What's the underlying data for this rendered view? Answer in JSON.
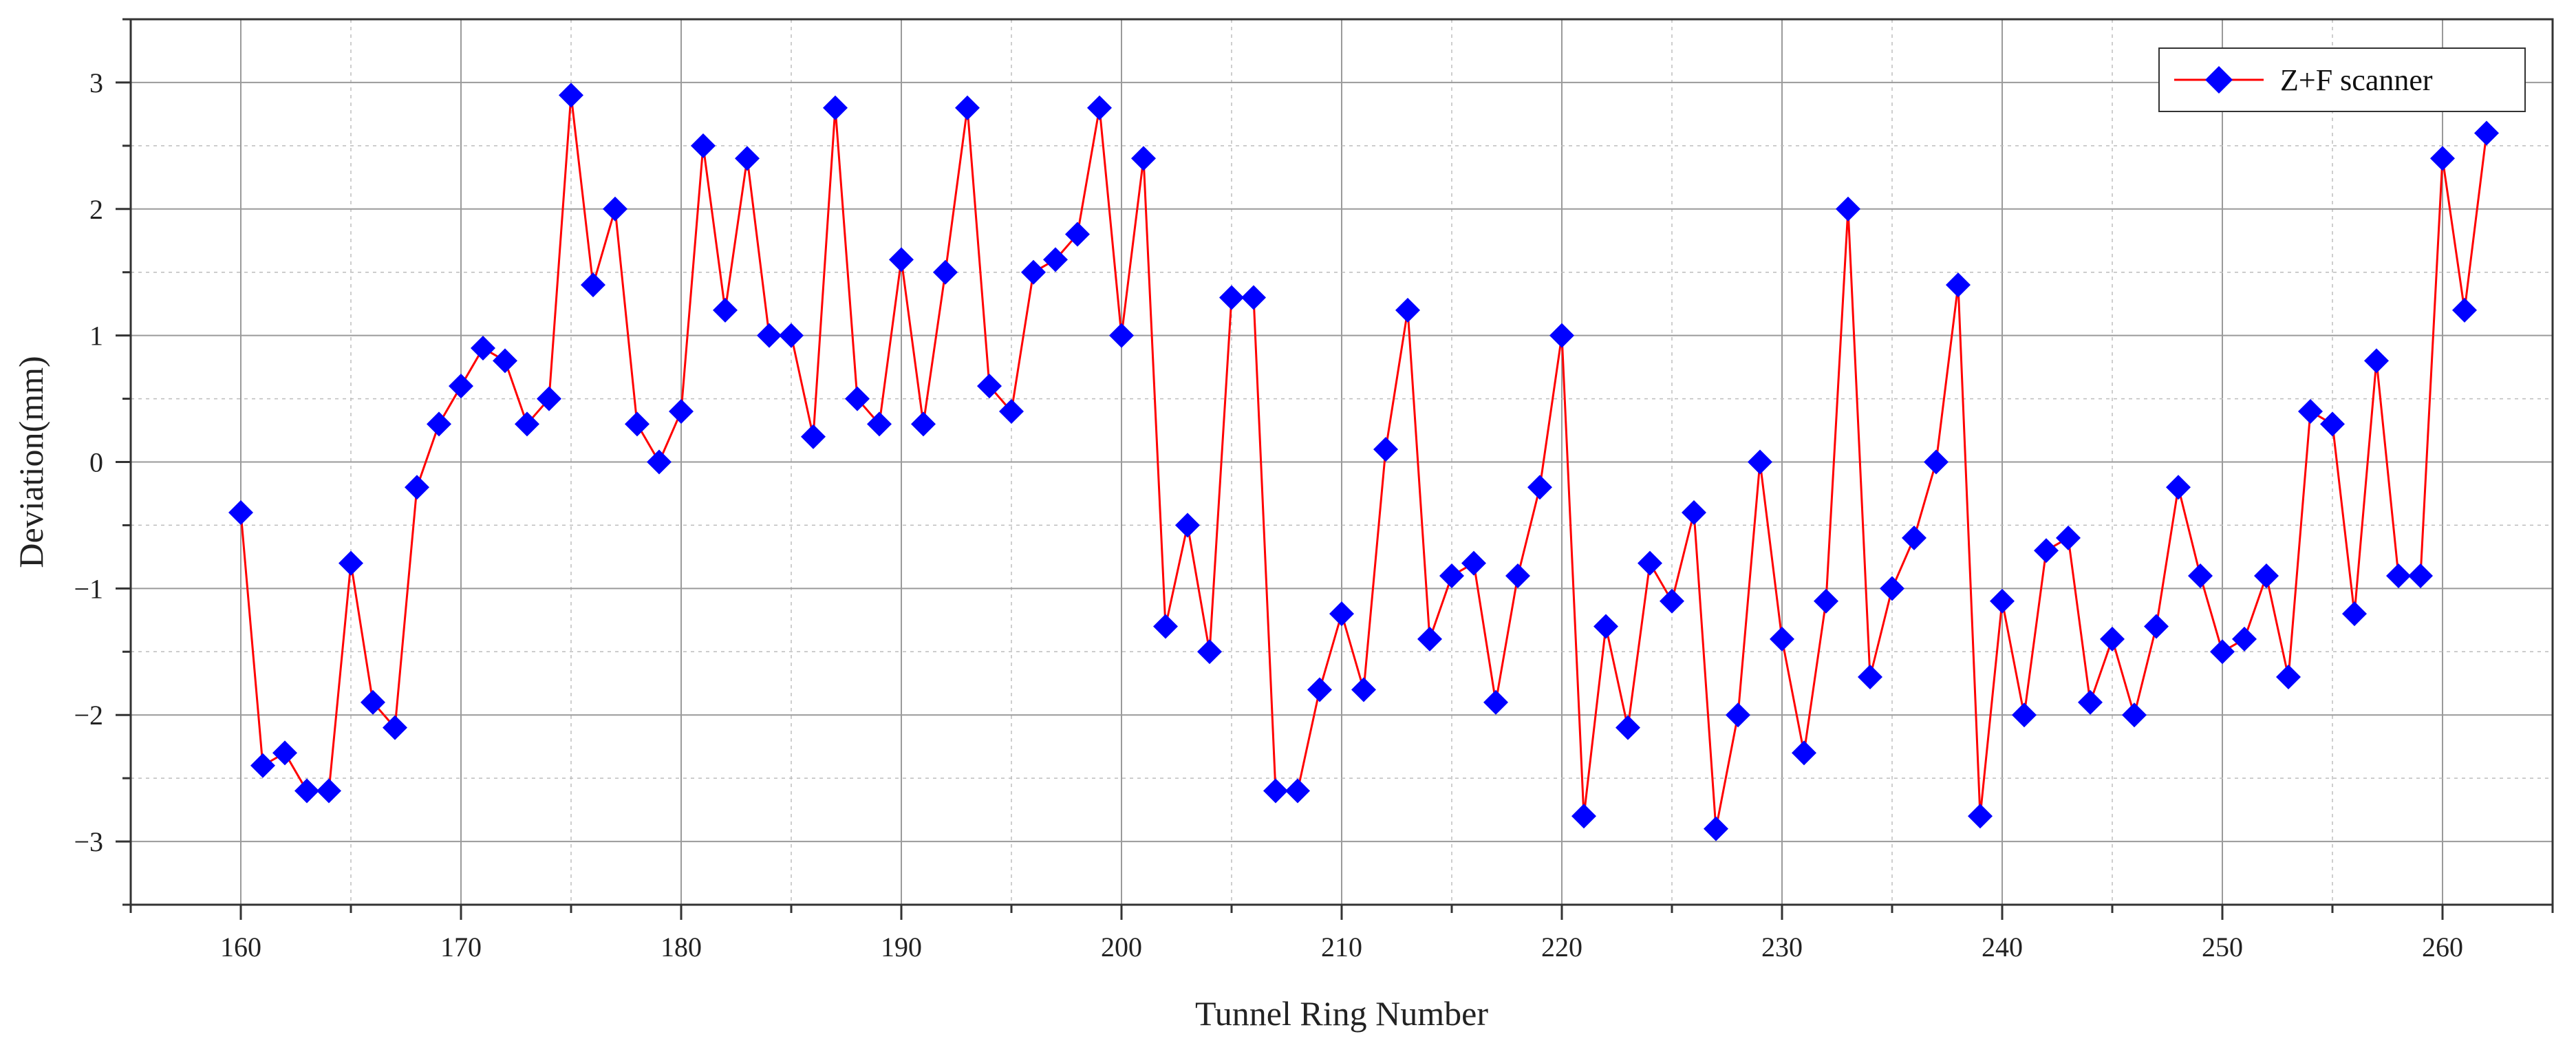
{
  "chart_data": {
    "type": "line",
    "title": "",
    "xlabel": "Tunnel Ring Number",
    "ylabel": "Deviation(mm)",
    "xlim": [
      155,
      265
    ],
    "ylim": [
      -3.5,
      3.5
    ],
    "x_ticks": [
      160,
      170,
      180,
      190,
      200,
      210,
      220,
      230,
      240,
      250,
      260
    ],
    "y_ticks": [
      -3,
      -2,
      -1,
      0,
      1,
      2,
      3
    ],
    "grid": true,
    "legend_position": "top-right",
    "series": [
      {
        "name": "Z+F scanner",
        "color": "#ff0000",
        "marker_color": "#0000ff",
        "marker": "diamond",
        "x": [
          160,
          161,
          162,
          163,
          164,
          165,
          166,
          167,
          168,
          169,
          170,
          171,
          172,
          173,
          174,
          175,
          176,
          177,
          178,
          179,
          180,
          181,
          182,
          183,
          184,
          185,
          186,
          187,
          188,
          189,
          190,
          191,
          192,
          193,
          194,
          195,
          196,
          197,
          198,
          199,
          200,
          201,
          202,
          203,
          204,
          205,
          206,
          207,
          208,
          209,
          210,
          211,
          212,
          213,
          214,
          215,
          216,
          217,
          218,
          219,
          220,
          221,
          222,
          223,
          224,
          225,
          226,
          227,
          228,
          229,
          230,
          231,
          232,
          233,
          234,
          235,
          236,
          237,
          238,
          239,
          240,
          241,
          242,
          243,
          244,
          245,
          246,
          247,
          248,
          249,
          250,
          251,
          252,
          253,
          254,
          255,
          256,
          257,
          258,
          259,
          260,
          261,
          262
        ],
        "y": [
          -0.4,
          -2.4,
          -2.3,
          -2.6,
          -2.6,
          -0.8,
          -1.9,
          -2.1,
          -0.2,
          0.3,
          0.6,
          0.9,
          0.8,
          0.3,
          0.5,
          2.9,
          1.4,
          2.0,
          0.3,
          0.0,
          0.4,
          2.5,
          1.2,
          2.4,
          1.0,
          1.0,
          0.2,
          2.8,
          0.5,
          0.3,
          1.6,
          0.3,
          1.5,
          2.8,
          0.6,
          0.4,
          1.5,
          1.6,
          1.8,
          2.8,
          1.0,
          2.4,
          -1.3,
          -0.5,
          -1.5,
          1.3,
          1.3,
          -2.6,
          -2.6,
          -1.8,
          -1.2,
          -1.8,
          0.1,
          1.2,
          -1.4,
          -0.9,
          -0.8,
          -1.9,
          -0.9,
          -0.2,
          1.0,
          -2.8,
          -1.3,
          -2.1,
          -0.8,
          -1.1,
          -0.4,
          -2.9,
          -2.0,
          0.0,
          -1.4,
          -2.3,
          -1.1,
          2.0,
          -1.7,
          -1.0,
          -0.6,
          0.0,
          1.4,
          -2.8,
          -1.1,
          -2.0,
          -0.7,
          -0.6,
          -1.9,
          -1.4,
          -2.0,
          -1.3,
          -0.2,
          -0.9,
          -1.5,
          -1.4,
          -0.9,
          -1.7,
          0.4,
          0.3,
          -1.2,
          0.8,
          -0.9,
          -0.9,
          2.4,
          1.2,
          2.6
        ]
      }
    ]
  }
}
